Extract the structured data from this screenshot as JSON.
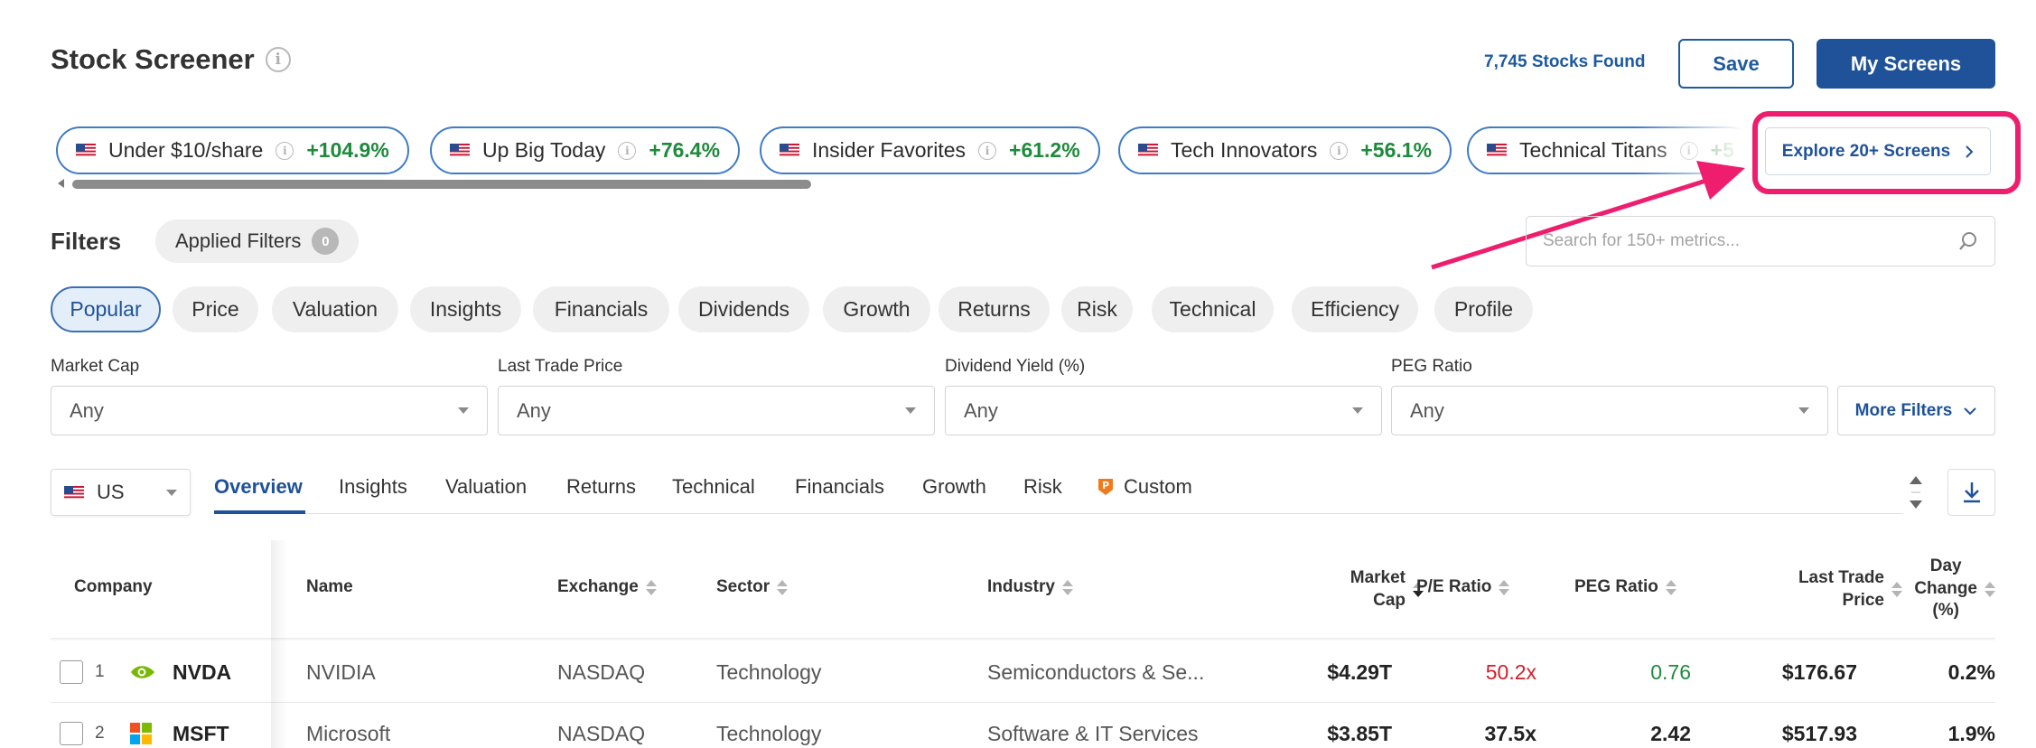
{
  "header": {
    "title": "Stock Screener",
    "stocks_found": "7,745 Stocks Found",
    "save_label": "Save",
    "my_screens_label": "My Screens"
  },
  "screens": [
    {
      "label": "Under $10/share",
      "change": "+104.9%"
    },
    {
      "label": "Up Big Today",
      "change": "+76.4%"
    },
    {
      "label": "Insider Favorites",
      "change": "+61.2%"
    },
    {
      "label": "Tech Innovators",
      "change": "+56.1%"
    },
    {
      "label": "Technical Titans",
      "change": "+5"
    }
  ],
  "explore_label": "Explore 20+ Screens",
  "colors": {
    "brand_blue": "#1f5299",
    "highlight_pink": "#ef1d6e",
    "positive_green": "#1e8a3c",
    "negative_red": "#d0202c"
  },
  "filters": {
    "title": "Filters",
    "applied_label": "Applied Filters",
    "applied_count": "0",
    "search_placeholder": "Search for 150+ metrics...",
    "categories": [
      "Popular",
      "Price",
      "Valuation",
      "Insights",
      "Financials",
      "Dividends",
      "Growth",
      "Returns",
      "Risk",
      "Technical",
      "Efficiency",
      "Profile"
    ],
    "active_category": "Popular",
    "dropdowns": [
      {
        "label": "Market Cap",
        "value": "Any"
      },
      {
        "label": "Last Trade Price",
        "value": "Any"
      },
      {
        "label": "Dividend Yield (%)",
        "value": "Any"
      },
      {
        "label": "PEG Ratio",
        "value": "Any"
      }
    ],
    "more_filters_label": "More Filters"
  },
  "view": {
    "country": "US",
    "tabs": [
      "Overview",
      "Insights",
      "Valuation",
      "Returns",
      "Technical",
      "Financials",
      "Growth",
      "Risk",
      "Custom"
    ],
    "active_tab": "Overview"
  },
  "table": {
    "columns": {
      "company": "Company",
      "name": "Name",
      "exchange": "Exchange",
      "sector": "Sector",
      "industry": "Industry",
      "market_cap_1": "Market",
      "market_cap_2": "Cap",
      "pe_ratio": "P/E Ratio",
      "peg_ratio": "PEG Ratio",
      "last_trade_1": "Last Trade",
      "last_trade_2": "Price",
      "day_change_1": "Day",
      "day_change_2": "Change",
      "day_change_3": "(%)"
    },
    "rows": [
      {
        "rank": "1",
        "ticker": "NVDA",
        "name": "NVIDIA",
        "exchange": "NASDAQ",
        "sector": "Technology",
        "industry": "Semiconductors & Se...",
        "market_cap": "$4.29T",
        "pe_ratio": "50.2x",
        "peg_ratio": "0.76",
        "last_price": "$176.67",
        "day_change": "0.2%"
      },
      {
        "rank": "2",
        "ticker": "MSFT",
        "name": "Microsoft",
        "exchange": "NASDAQ",
        "sector": "Technology",
        "industry": "Software & IT Services",
        "market_cap": "$3.85T",
        "pe_ratio": "37.5x",
        "peg_ratio": "2.42",
        "last_price": "$517.93",
        "day_change": "1.9%"
      }
    ]
  }
}
